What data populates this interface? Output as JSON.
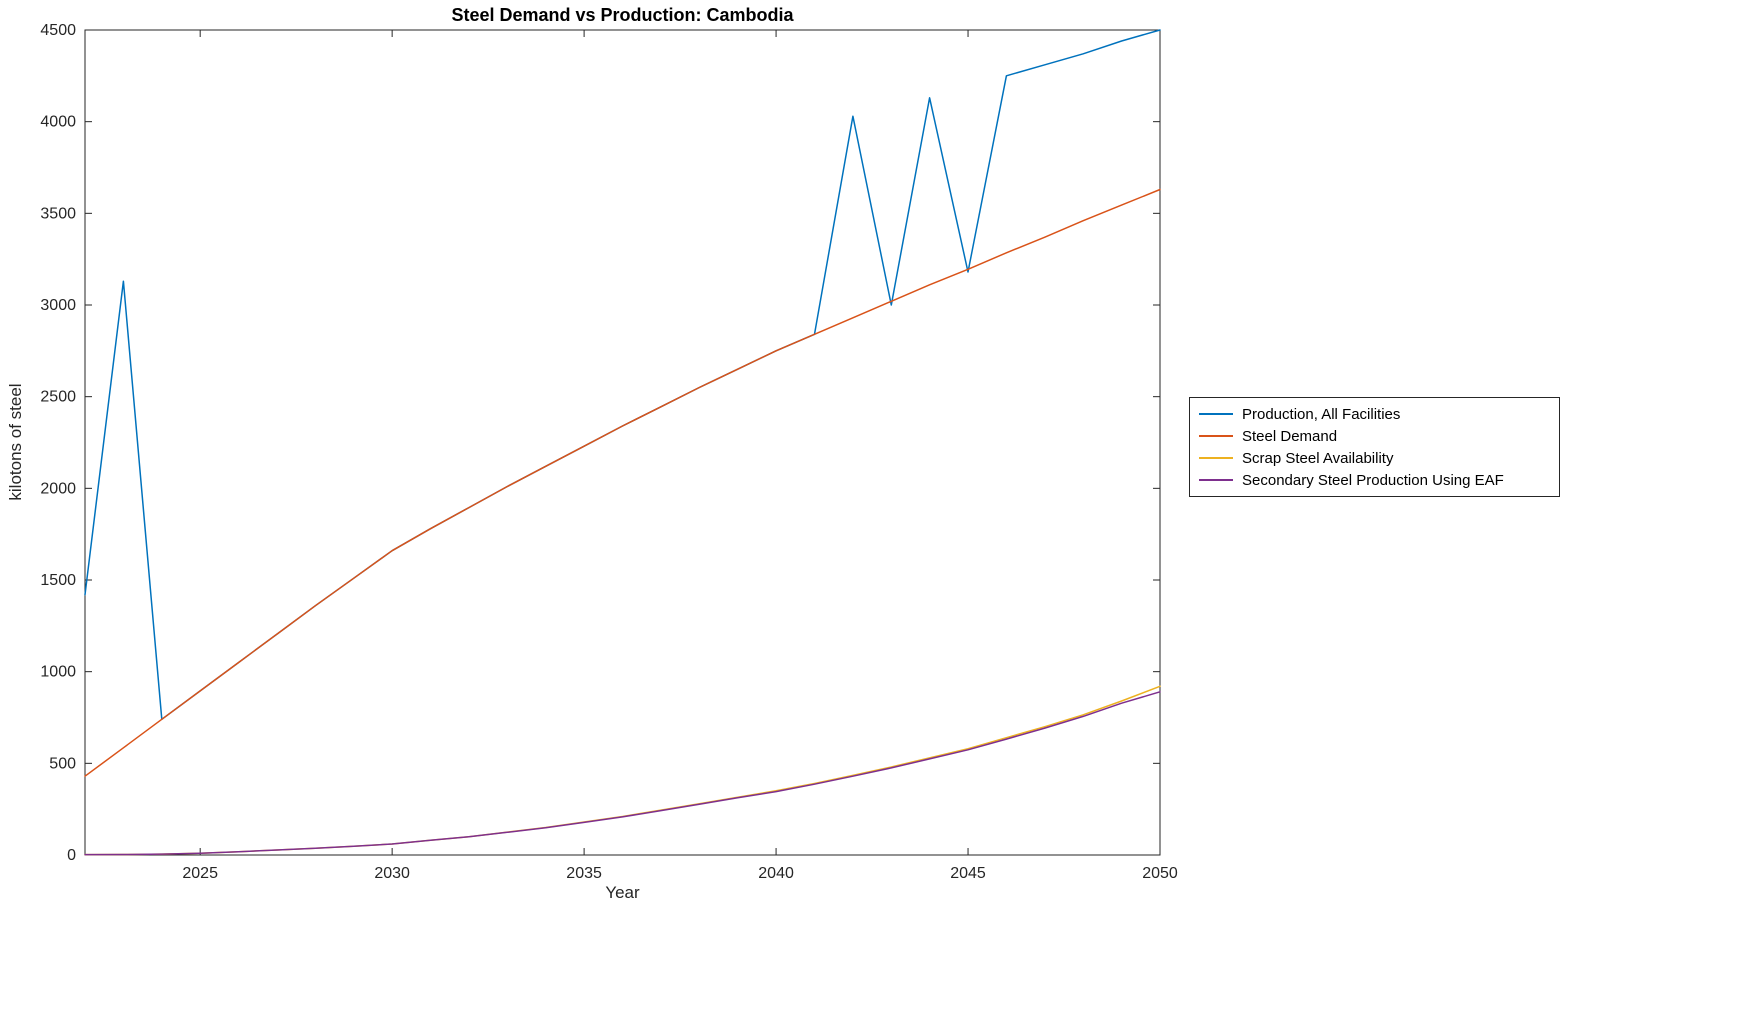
{
  "figure": {
    "title": "Steel Demand vs Production: Cambodia",
    "xlabel": "Year",
    "ylabel": "kilotons of steel"
  },
  "chart_data": {
    "type": "line",
    "title": "Steel Demand vs Production: Cambodia",
    "xlabel": "Year",
    "ylabel": "kilotons of steel",
    "xlim": [
      2022,
      2050
    ],
    "ylim": [
      0,
      4500
    ],
    "xticks": [
      2025,
      2030,
      2035,
      2040,
      2045,
      2050
    ],
    "yticks": [
      0,
      500,
      1000,
      1500,
      2000,
      2500,
      3000,
      3500,
      4000,
      4500
    ],
    "grid": false,
    "legend_position": "right-outside",
    "axis_color": "#262626",
    "x": [
      2022,
      2023,
      2024,
      2025,
      2026,
      2027,
      2028,
      2029,
      2030,
      2031,
      2032,
      2033,
      2034,
      2035,
      2036,
      2037,
      2038,
      2039,
      2040,
      2041,
      2042,
      2043,
      2044,
      2045,
      2046,
      2047,
      2048,
      2049,
      2050
    ],
    "series": [
      {
        "name": "Production, All Facilities",
        "color": "#0072BD",
        "values": [
          1420,
          3130,
          740,
          895,
          1050,
          1205,
          1360,
          1510,
          1660,
          1780,
          1895,
          2010,
          2120,
          2230,
          2340,
          2445,
          2550,
          2650,
          2750,
          2840,
          4030,
          3000,
          4130,
          3180,
          4250,
          4310,
          4370,
          4440,
          4500
        ]
      },
      {
        "name": "Steel Demand",
        "color": "#D95319",
        "values": [
          430,
          585,
          740,
          895,
          1050,
          1205,
          1360,
          1510,
          1660,
          1780,
          1895,
          2010,
          2120,
          2230,
          2340,
          2445,
          2550,
          2650,
          2750,
          2840,
          2930,
          3020,
          3110,
          3195,
          3285,
          3370,
          3460,
          3545,
          3630
        ]
      },
      {
        "name": "Scrap Steel Availability",
        "color": "#EDB120",
        "values": [
          2,
          3,
          5,
          10,
          18,
          27,
          37,
          48,
          60,
          80,
          100,
          125,
          150,
          180,
          210,
          245,
          280,
          315,
          350,
          390,
          435,
          480,
          530,
          580,
          640,
          700,
          765,
          840,
          920
        ]
      },
      {
        "name": "Secondary Steel Production Using EAF",
        "color": "#7E2F8E",
        "values": [
          2,
          3,
          5,
          10,
          18,
          27,
          37,
          48,
          60,
          80,
          100,
          124,
          149,
          178,
          208,
          242,
          277,
          312,
          346,
          386,
          430,
          475,
          524,
          574,
          632,
          692,
          756,
          828,
          890
        ]
      }
    ]
  }
}
